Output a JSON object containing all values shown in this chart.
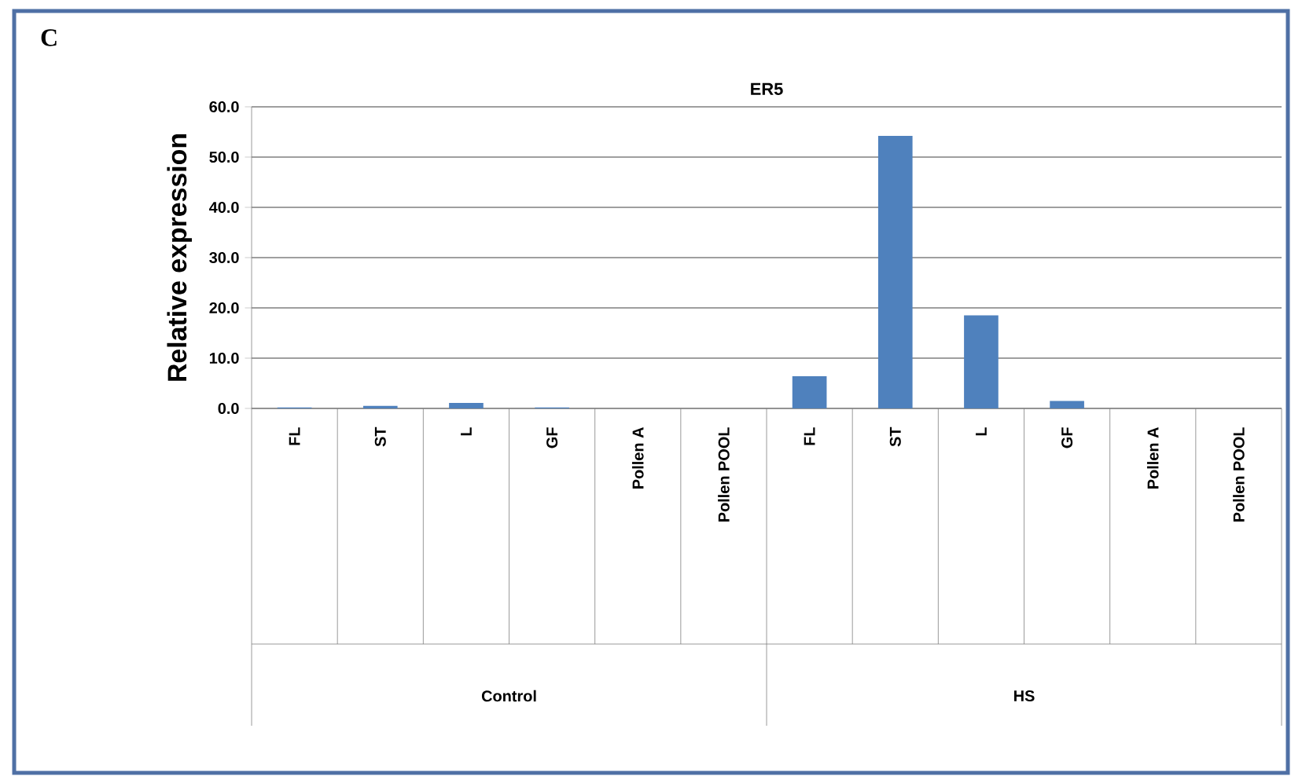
{
  "chart_data": {
    "type": "bar",
    "title": "ER5",
    "ylabel": "Relative expression",
    "annotations": [
      "C",
      "Control",
      "HS"
    ],
    "categories": [
      "FL",
      "ST",
      "L",
      "GF",
      "Pollen A",
      "Pollen POOL",
      "FL",
      "ST",
      "L",
      "GF",
      "Pollen A",
      "Pollen POOL"
    ],
    "values": [
      0.2,
      0.5,
      1.1,
      0.2,
      0,
      0,
      6.4,
      54.2,
      18.5,
      1.5,
      0,
      0
    ],
    "color": "#4f81bd",
    "ylim": [
      0,
      60
    ],
    "yticks": [
      {
        "value": 0,
        "label": "0.0"
      },
      {
        "value": 10,
        "label": "10.0"
      },
      {
        "value": 20,
        "label": "20.0"
      },
      {
        "value": 30,
        "label": "30.0"
      },
      {
        "value": 40,
        "label": "40.0"
      },
      {
        "value": 50,
        "label": "50.0"
      },
      {
        "value": 60,
        "label": "60.0"
      }
    ],
    "grid": "y"
  }
}
